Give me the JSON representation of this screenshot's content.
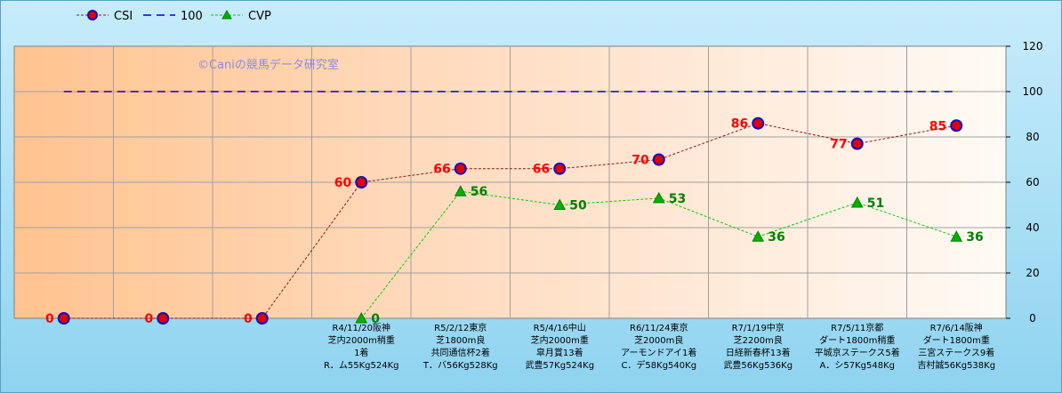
{
  "chart_data": {
    "type": "line",
    "watermark": "©Caniの競馬データ研究室",
    "categories": [
      [],
      [],
      [],
      [
        "R4/11/20阪神",
        "芝内2000m稍重",
        "1着",
        "R．ム55Kg524Kg"
      ],
      [
        "R5/2/12東京",
        "芝1800m良",
        "共同通信杯2着",
        "T．バ56Kg528Kg"
      ],
      [
        "R5/4/16中山",
        "芝内2000m重",
        "皐月賞13着",
        "武豊57Kg524Kg"
      ],
      [
        "R6/11/24東京",
        "芝2000m良",
        "アーモンドアイ1着",
        "C．デ58Kg540Kg"
      ],
      [
        "R7/1/19中京",
        "芝2200m良",
        "日経新春杯13着",
        "武豊56Kg536Kg"
      ],
      [
        "R7/5/11京都",
        "ダート1800m稍重",
        "平城京ステークス5着",
        "A．シ57Kg548Kg"
      ],
      [
        "R7/6/14阪神",
        "ダート1800m重",
        "三宮ステークス9着",
        "吉村誠56Kg538Kg"
      ]
    ],
    "series": [
      {
        "name": "CSI",
        "color": "#8b1a1a",
        "marker": "circle",
        "values": [
          0,
          0,
          0,
          60,
          66,
          66,
          70,
          86,
          77,
          85
        ]
      },
      {
        "name": "100",
        "color": "#0000cc",
        "marker": "none",
        "values": [
          100,
          100,
          100,
          100,
          100,
          100,
          100,
          100,
          100,
          100
        ]
      },
      {
        "name": "CVP",
        "color": "#00cc00",
        "marker": "triangle",
        "values": [
          null,
          null,
          null,
          0,
          56,
          50,
          53,
          36,
          51,
          36
        ]
      }
    ],
    "y_axis": {
      "position": "right",
      "min": 0,
      "max": 120,
      "ticks": [
        0,
        20,
        40,
        60,
        80,
        100,
        120
      ]
    },
    "grid": true,
    "legend": "top-left"
  }
}
